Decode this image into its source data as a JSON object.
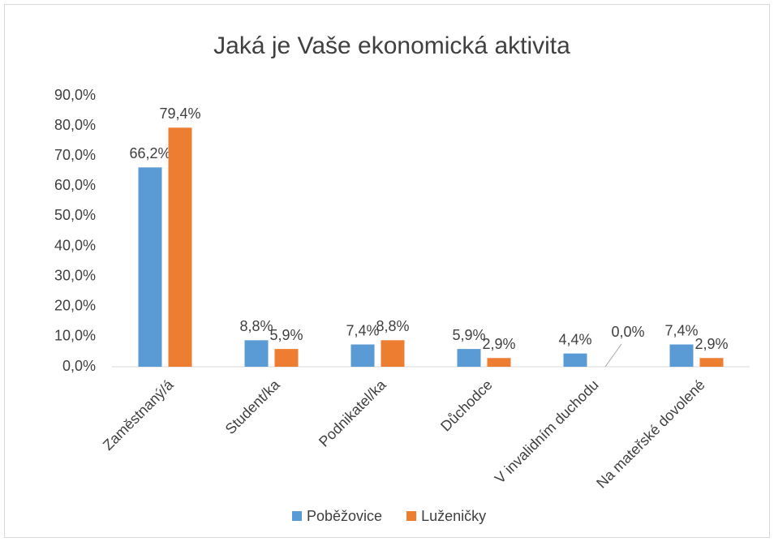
{
  "chart_data": {
    "type": "bar",
    "title": "Jaká je Vaše ekonomická  aktivita",
    "categories": [
      "Zaměstnaný/á",
      "Student/ka",
      "Podnikatel/ka",
      "Důchodce",
      "V invalidním duchodu",
      "Na mateřské dovolené"
    ],
    "series": [
      {
        "name": "Poběžovice",
        "color": "#5b9bd5",
        "values": [
          66.2,
          8.8,
          7.4,
          5.9,
          4.4,
          7.4
        ],
        "value_labels": [
          "66,2%",
          "8,8%",
          "7,4%",
          "5,9%",
          "4,4%",
          "7,4%"
        ]
      },
      {
        "name": "Luženičky",
        "color": "#ed7d31",
        "values": [
          79.4,
          5.9,
          8.8,
          2.9,
          0.0,
          2.9
        ],
        "value_labels": [
          "79,4%",
          "5,9%",
          "8,8%",
          "2,9%",
          "0,0%",
          "2,9%"
        ]
      }
    ],
    "ylim": [
      0,
      90
    ],
    "yticks": [
      {
        "value": 0,
        "label": "0,0%"
      },
      {
        "value": 10,
        "label": "10,0%"
      },
      {
        "value": 20,
        "label": "20,0%"
      },
      {
        "value": 30,
        "label": "30,0%"
      },
      {
        "value": 40,
        "label": "40,0%"
      },
      {
        "value": 50,
        "label": "50,0%"
      },
      {
        "value": 60,
        "label": "60,0%"
      },
      {
        "value": 70,
        "label": "70,0%"
      },
      {
        "value": 80,
        "label": "80,0%"
      },
      {
        "value": 90,
        "label": "90,0%"
      }
    ],
    "grid": false,
    "legend": "bottom"
  }
}
